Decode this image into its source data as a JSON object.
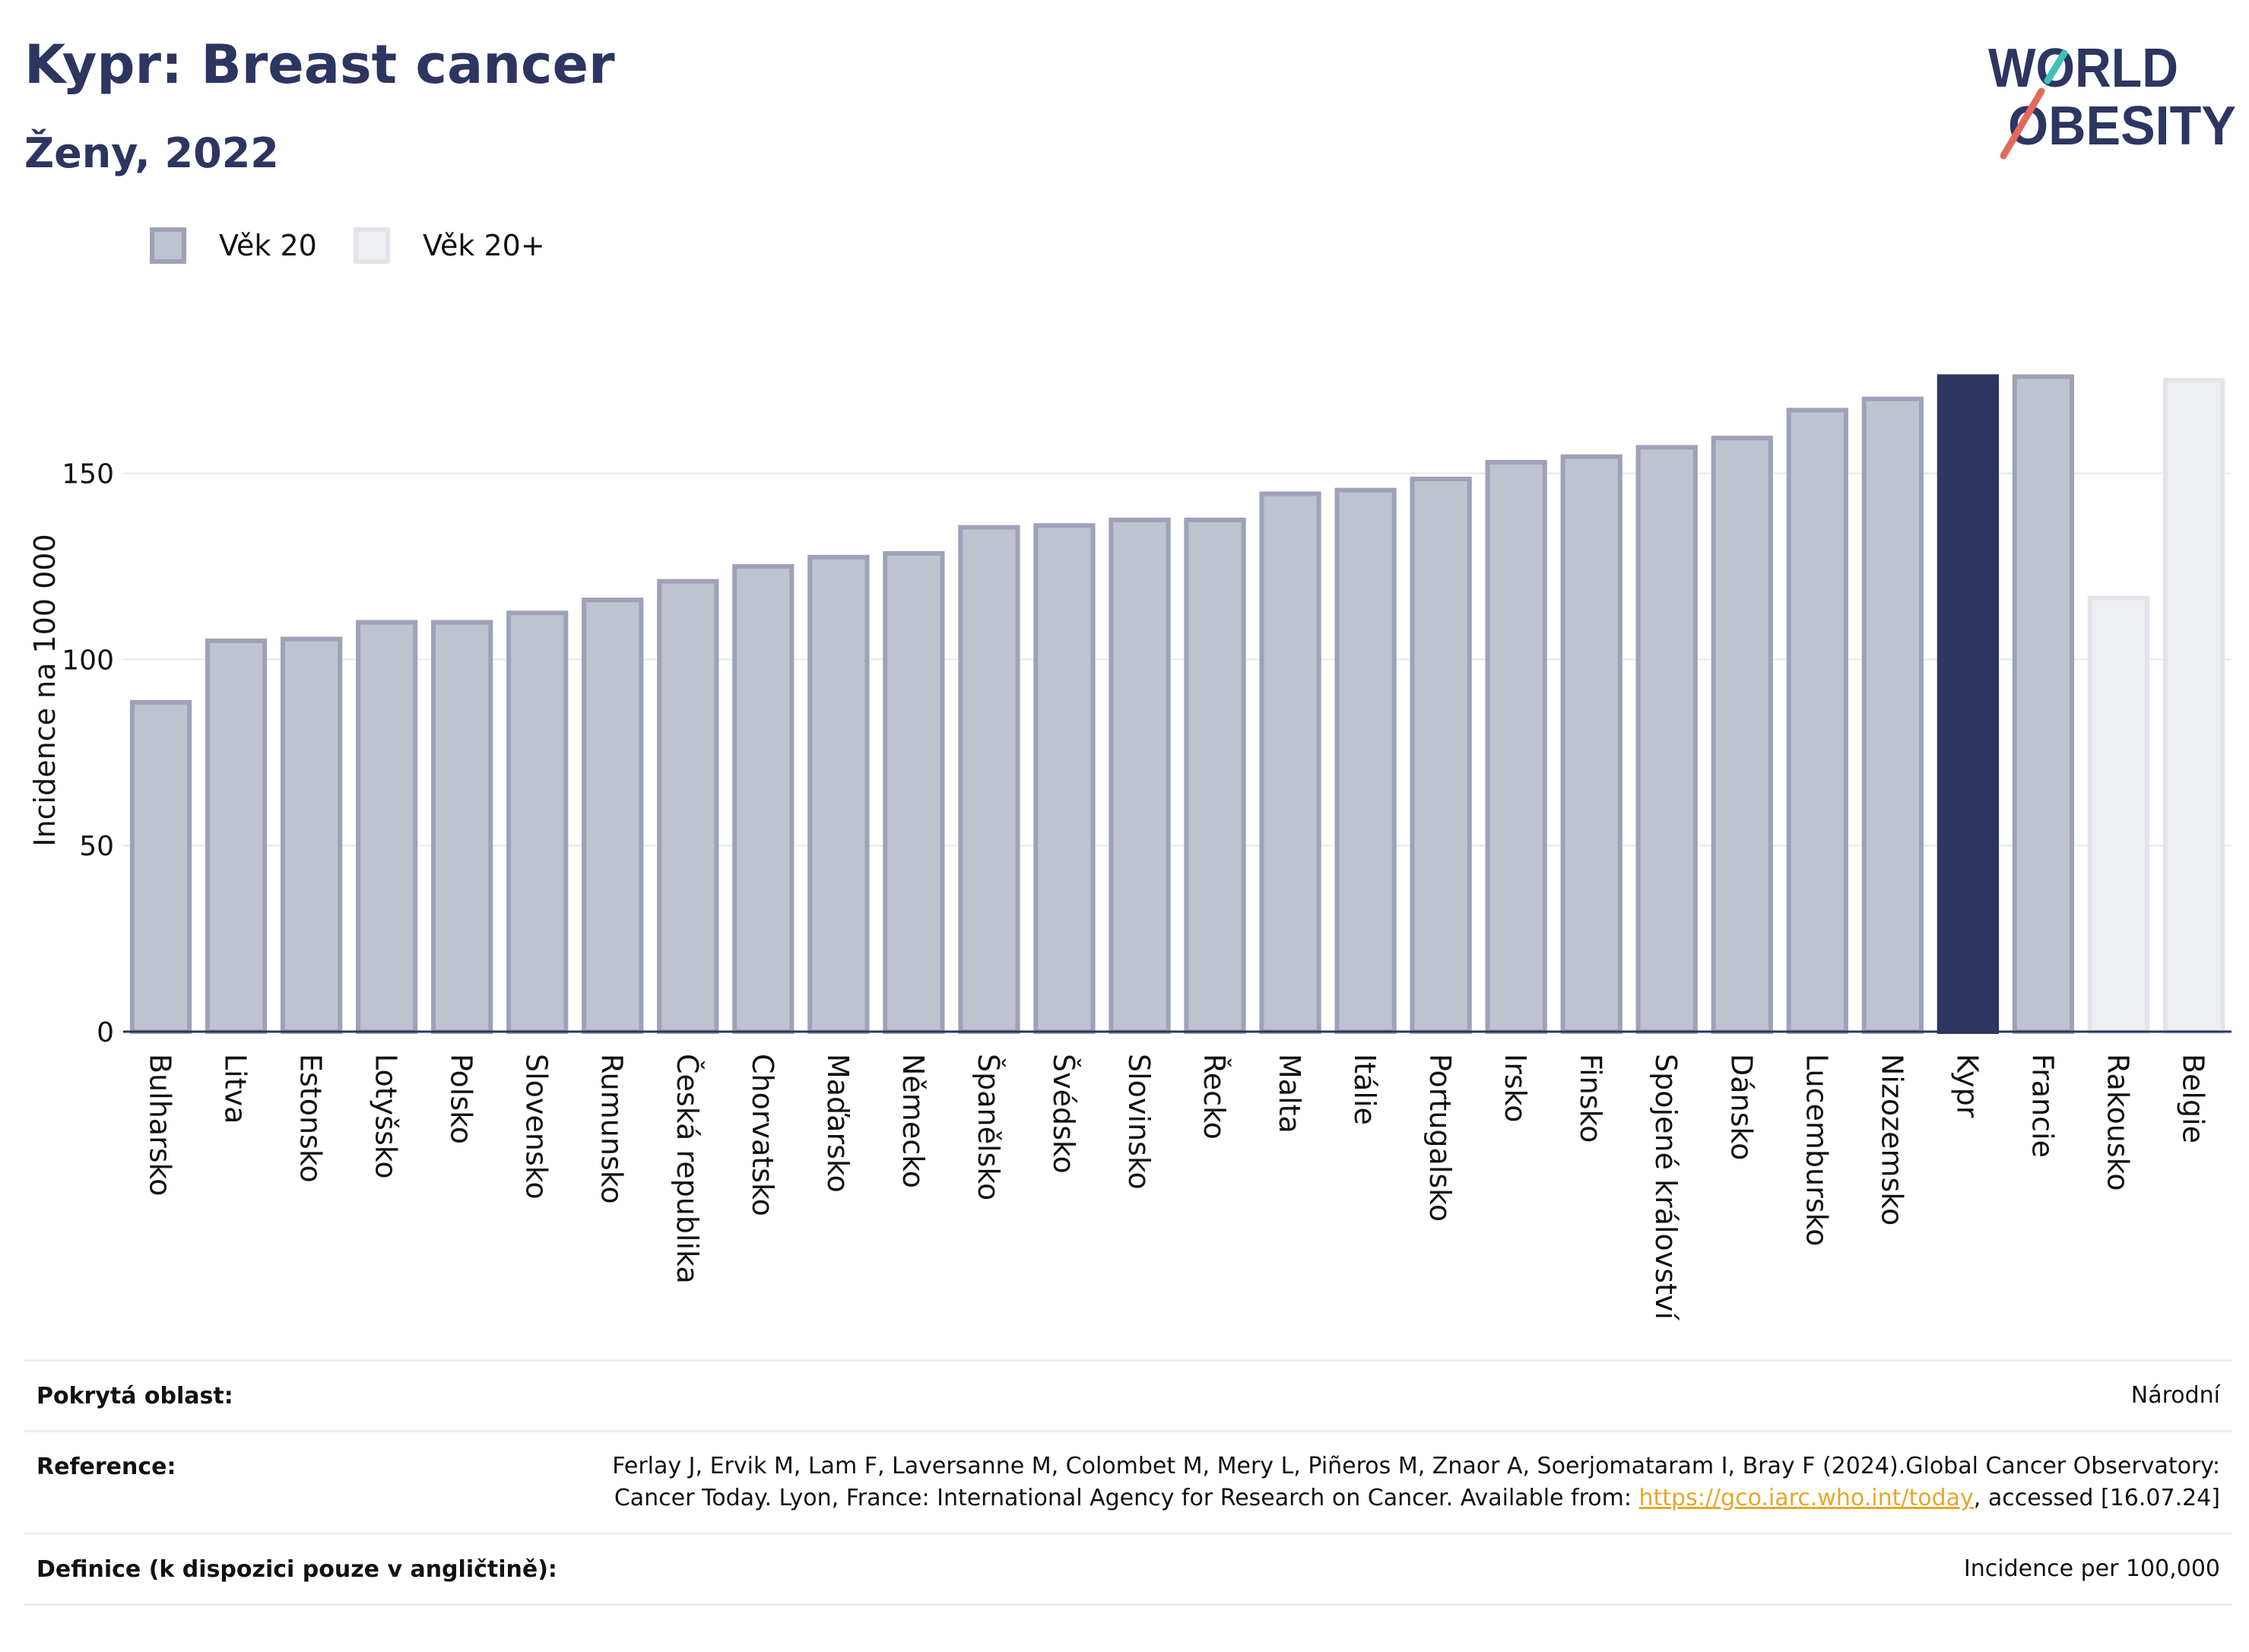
{
  "header": {
    "title": "Kypr: Breast cancer",
    "subtitle": "Ženy, 2022"
  },
  "logo": {
    "line1": "WORLD",
    "line2": "OBESITY"
  },
  "colors": {
    "bar_fill": "#bfc2cf",
    "bar_stroke": "#9da2b8",
    "highlight": "#2d3561",
    "light_fill": "#eeeff3",
    "light_stroke": "#e3e4ea",
    "grid": "#e6e8ec",
    "text": "#2d3561"
  },
  "legend": {
    "items": [
      {
        "label": "Věk 20",
        "color": "#bfc2cf"
      },
      {
        "label": "Věk 20+",
        "color": "#eeeff3"
      }
    ]
  },
  "chart_data": {
    "type": "bar",
    "ylabel": "Incidence na 100 000",
    "ylim": [
      0,
      182
    ],
    "yticks": [
      0,
      50,
      100,
      150
    ],
    "grid": true,
    "legend_position": "top-left",
    "categories": [
      "Bulharsko",
      "Litva",
      "Estonsko",
      "Lotyšsko",
      "Polsko",
      "Slovensko",
      "Rumunsko",
      "Česká republika",
      "Chorvatsko",
      "Maďarsko",
      "Německo",
      "Španělsko",
      "Švédsko",
      "Slovinsko",
      "Řecko",
      "Malta",
      "Itálie",
      "Portugalsko",
      "Irsko",
      "Finsko",
      "Spojené království",
      "Dánsko",
      "Lucembursko",
      "Nizozemsko",
      "Kypr",
      "Francie",
      "Rakousko",
      "Belgie"
    ],
    "values": [
      88.5,
      105,
      105.5,
      110,
      110,
      112.5,
      116,
      121,
      125,
      127.5,
      128.5,
      135.5,
      136,
      137.5,
      137.5,
      144.5,
      145.5,
      148.5,
      153,
      154.5,
      157,
      159.5,
      167,
      170,
      176,
      176,
      116.5,
      175
    ],
    "series_group": [
      "Věk 20",
      "Věk 20",
      "Věk 20",
      "Věk 20",
      "Věk 20",
      "Věk 20",
      "Věk 20",
      "Věk 20",
      "Věk 20",
      "Věk 20",
      "Věk 20",
      "Věk 20",
      "Věk 20",
      "Věk 20",
      "Věk 20",
      "Věk 20",
      "Věk 20",
      "Věk 20",
      "Věk 20",
      "Věk 20",
      "Věk 20",
      "Věk 20",
      "Věk 20",
      "Věk 20",
      "Věk 20",
      "Věk 20",
      "Věk 20+",
      "Věk 20+"
    ],
    "highlight": "Kypr"
  },
  "info": {
    "coverage_label": "Pokrytá oblast:",
    "coverage_value": "Národní",
    "reference_label": "Reference:",
    "reference_text_1": "Ferlay J, Ervik M, Lam F, Laversanne M, Colombet M, Mery L, Piñeros M, Znaor A, Soerjomataram I, Bray F (2024).Global Cancer Observatory: Cancer Today. Lyon, France: International Agency for Research on Cancer. Available from: ",
    "reference_link": "https://gco.iarc.who.int/today",
    "reference_text_2": ", accessed [16.07.24]",
    "definition_label": "Definice (k dispozici pouze v angličtině):",
    "definition_value": "Incidence per 100,000"
  }
}
